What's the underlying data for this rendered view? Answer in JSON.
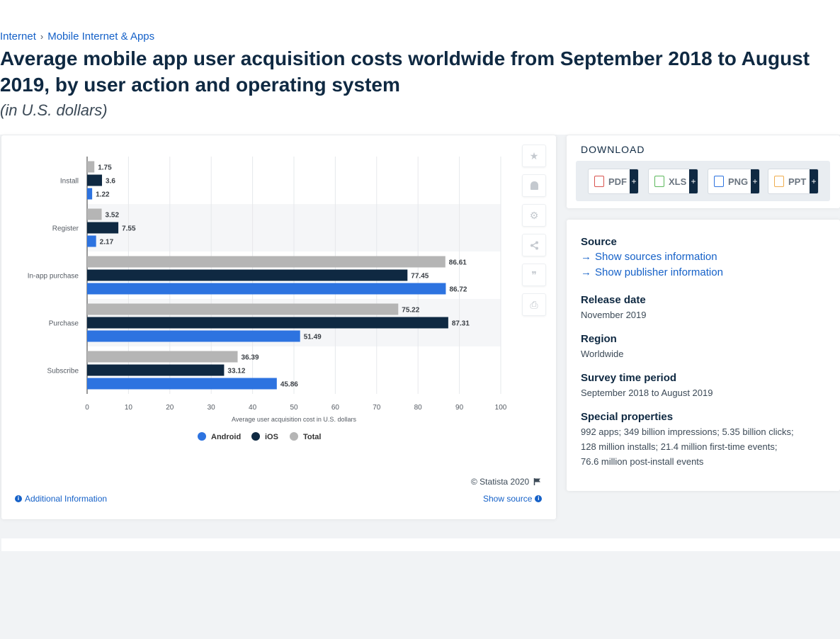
{
  "breadcrumb": {
    "items": [
      "Internet",
      "Mobile Internet & Apps"
    ],
    "separator": "›"
  },
  "title": "Average mobile app user acquisition costs worldwide from September 2018 to August 2019, by user action and operating system",
  "subtitle": "(in U.S. dollars)",
  "chart_data": {
    "type": "bar",
    "orientation": "horizontal",
    "categories": [
      "Install",
      "Register",
      "In-app purchase",
      "Purchase",
      "Subscribe"
    ],
    "series": [
      {
        "name": "Total",
        "color": "#b5b5b5",
        "values": [
          1.75,
          3.52,
          86.61,
          75.22,
          36.39
        ],
        "labels": [
          "1.75",
          "3.52",
          "86.61",
          "75.22",
          "36.39"
        ]
      },
      {
        "name": "iOS",
        "color": "#0f2942",
        "values": [
          3.6,
          7.55,
          77.45,
          87.31,
          33.12
        ],
        "labels": [
          "3.6",
          "7.55",
          "77.45",
          "87.31",
          "33.12"
        ]
      },
      {
        "name": "Android",
        "color": "#2d73e0",
        "values": [
          1.22,
          2.17,
          86.72,
          51.49,
          45.86
        ],
        "labels": [
          "1.22",
          "2.17",
          "86.72",
          "51.49",
          "45.86"
        ]
      }
    ],
    "legend_order": [
      "Android",
      "iOS",
      "Total"
    ],
    "xlabel": "Average user acquisition cost in U.S. dollars",
    "xlim": [
      0,
      100
    ],
    "xticks": [
      "0",
      "10",
      "20",
      "30",
      "40",
      "50",
      "60",
      "70",
      "80",
      "90",
      "100"
    ],
    "grid": true,
    "legend_position": "bottom"
  },
  "side_tools": [
    {
      "name": "star-icon",
      "glyph": "★"
    },
    {
      "name": "bell-icon",
      "glyph": "🔔"
    },
    {
      "name": "gear-icon",
      "glyph": "⚙"
    },
    {
      "name": "share-icon",
      "glyph": "≪"
    },
    {
      "name": "quote-icon",
      "glyph": "❞"
    },
    {
      "name": "print-icon",
      "glyph": "⎙"
    }
  ],
  "copyright": "© Statista 2020",
  "additional_info": "Additional Information",
  "show_source": "Show source",
  "download": {
    "heading": "DOWNLOAD",
    "buttons": [
      {
        "label": "PDF",
        "color": "#d9534f"
      },
      {
        "label": "XLS",
        "color": "#5cb85c"
      },
      {
        "label": "PNG",
        "color": "#2d73e0"
      },
      {
        "label": "PPT",
        "color": "#f0ad4e"
      }
    ],
    "plus": "+"
  },
  "info": {
    "source_label": "Source",
    "show_sources": "Show sources information",
    "show_publisher": "Show publisher information",
    "release_label": "Release date",
    "release_value": "November 2019",
    "region_label": "Region",
    "region_value": "Worldwide",
    "survey_label": "Survey time period",
    "survey_value": "September 2018 to August 2019",
    "special_label": "Special properties",
    "special_lines": [
      "992 apps; 349 billion impressions; 5.35 billion clicks;",
      "128 million installs; 21.4 million first-time events;",
      "76.6 million post-install events"
    ]
  }
}
